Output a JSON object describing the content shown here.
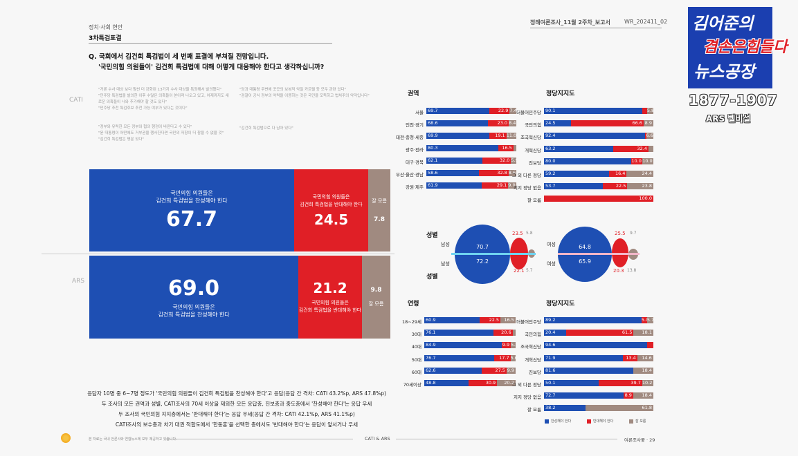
{
  "header": {
    "section": "정치·사회 현안",
    "subsection": "3차특검표결",
    "report_title": "정례여론조사_11월 2주차_보고서",
    "report_code": "WR_202411_02"
  },
  "question": {
    "line1": "Q. 국회에서 김건희 특검법이 세 번째 표결에 부쳐질 전망입니다.",
    "line2": "'국민의힘 의원들이' 김건희 특검법에 대해 어떻게 대응해야 한다고 생각하십니까?"
  },
  "methods": {
    "cati": "CATI",
    "ars": "ARS"
  },
  "quotes": [
    "\"거론 수사 대상 보다 훨씬 더 강화된 13가지 수사 대상을 특정해서 발의했다\"",
    "\"민주당 특검법을 발의한 이후 수많은 의혹들이 쏟아져 나오고 있고, 어제까지도 새로운 의혹들이 나와 추가해야 할 것도 있다\"",
    "\"민주당 추천 특검후보 추천 가능 여부가 있다는 것이다\"",
    "\"정부와 유력한 모든 정부와 협의 행정이 바뀐다고 수 있다\"",
    "\"윤 대통령이 어떤에도 거부권을 행사한다면 국민의 저항이 더 참을 수 없을 것\"",
    "\"김건희 특검법은 명분 있다\"",
    "\"당과 대통령 주변에 곳곳의 보복적 악질 카르텔 등 모두 관련 있다\"",
    "\"검찰이 공식 정부의 악력을 이용하는 것은 국민을 모독하고 법치주의 악덕입니다\"",
    "\"김건희 특검법으로 다 남아 있다\""
  ],
  "main_bars": {
    "cati": {
      "support_label1": "국민의힘 의원들은",
      "support_label2": "김건희 특검법을 찬성해야 한다",
      "support": "67.7",
      "oppose_label1": "국민의힘 의원들은",
      "oppose_label2": "김건희 특검법을 반대해야 한다",
      "oppose": "24.5",
      "dk_label": "잘 모름",
      "dk": "7.8"
    },
    "ars": {
      "support": "69.0",
      "support_label1": "국민의힘 의원들은",
      "support_label2": "김건희 특검법을 찬성해야 한다",
      "oppose": "21.2",
      "oppose_label1": "국민의힘 의원들은",
      "oppose_label2": "김건희 특검법을 반대해야 한다",
      "dk": "9.8",
      "dk_label": "잘 모름"
    }
  },
  "region": {
    "title": "권역",
    "rows": [
      {
        "label": "서울",
        "values": [
          "69.7",
          "22.9",
          "7.4"
        ]
      },
      {
        "label": "인천·경기",
        "values": [
          "68.6",
          "23.0",
          "8.4"
        ]
      },
      {
        "label": "대전·충청·세종",
        "values": [
          "69.9",
          "19.1",
          "11.0"
        ]
      },
      {
        "label": "광주·전라",
        "values": [
          "80.3",
          "16.5",
          ""
        ]
      },
      {
        "label": "대구·경북",
        "values": [
          "62.1",
          "32.0",
          "5.9"
        ]
      },
      {
        "label": "부산·울산·경남",
        "values": [
          "58.6",
          "32.8",
          "8.6"
        ]
      },
      {
        "label": "강원·제주",
        "values": [
          "61.9",
          "29.1",
          "9.0"
        ]
      }
    ]
  },
  "party1": {
    "title": "정당지지도",
    "rows": [
      {
        "label": "더불어민주당",
        "values": [
          "90.1",
          "",
          "5.8"
        ]
      },
      {
        "label": "국민의힘",
        "values": [
          "24.5",
          "66.6",
          "8.9"
        ]
      },
      {
        "label": "조국혁신당",
        "values": [
          "92.4",
          "",
          "6.6"
        ]
      },
      {
        "label": "개혁신당",
        "values": [
          "63.2",
          "32.4",
          ""
        ]
      },
      {
        "label": "진보당",
        "values": [
          "80.0",
          "10.0",
          "10.0"
        ]
      },
      {
        "label": "그 외 다른 정당",
        "values": [
          "59.2",
          "16.4",
          "24.4"
        ]
      },
      {
        "label": "지지 정당 없음",
        "values": [
          "53.7",
          "22.5",
          "23.8"
        ]
      },
      {
        "label": "잘 모름",
        "values": [
          "",
          "100.0",
          ""
        ]
      }
    ]
  },
  "gender": {
    "title_top": "성별",
    "title_bottom": "성별",
    "male": "남성",
    "female": "여성",
    "cati_male": [
      "70.7",
      "23.5",
      "5.8"
    ],
    "ars_male": [
      "72.2",
      "22.1",
      "5.7"
    ],
    "cati_female": [
      "64.8",
      "25.5",
      "9.7"
    ],
    "ars_female": [
      "65.9",
      "20.3",
      "13.8"
    ]
  },
  "age": {
    "title": "연령",
    "rows": [
      {
        "label": "18~29세",
        "values": [
          "60.9",
          "22.5",
          "16.5"
        ]
      },
      {
        "label": "30대",
        "values": [
          "76.1",
          "20.6",
          ""
        ]
      },
      {
        "label": "40대",
        "values": [
          "84.9",
          "9.9",
          "5.2"
        ]
      },
      {
        "label": "50대",
        "values": [
          "76.7",
          "17.7",
          "5.6"
        ]
      },
      {
        "label": "60대",
        "values": [
          "62.6",
          "27.5",
          "9.9"
        ]
      },
      {
        "label": "70세이상",
        "values": [
          "48.8",
          "30.9",
          "20.2"
        ]
      }
    ]
  },
  "party2": {
    "title": "정당지지도",
    "rows": [
      {
        "label": "더불어민주당",
        "values": [
          "89.2",
          "5.0",
          "5.7"
        ]
      },
      {
        "label": "국민의힘",
        "values": [
          "20.4",
          "61.5",
          "18.1"
        ]
      },
      {
        "label": "조국혁신당",
        "values": [
          "94.6",
          "",
          ""
        ]
      },
      {
        "label": "개혁신당",
        "values": [
          "71.9",
          "13.4",
          "14.6"
        ]
      },
      {
        "label": "진보당",
        "values": [
          "81.6",
          "",
          "18.4"
        ]
      },
      {
        "label": "그 외 다른 정당",
        "values": [
          "50.1",
          "39.7",
          "10.2"
        ]
      },
      {
        "label": "지지 정당 없음",
        "values": [
          "72.7",
          "8.9",
          "18.4"
        ]
      },
      {
        "label": "잘 모름",
        "values": [
          "38.2",
          "",
          "61.8"
        ]
      }
    ]
  },
  "legend": {
    "support": "찬성해야 한다",
    "oppose": "반대해야 한다",
    "dk": "잘 모름"
  },
  "footer_notes": [
    "응답자 10명 중 6~7명 정도가 '국민의힘 의원들이 김건희 특검법을 찬성해야 한다'고 응답(응답 간 격차: CATI 43.2%p, ARS 47.8%p)",
    "두 조사의 모든 권역과 성별, CATI조사의 70세 이상을 제외한 모든 응답층, 진보층과 중도층에서 '찬성해야 한다'는 응답 우세",
    "두 조사의 국민의힘 지지층에서는 '반대해야 한다'는 응답 우세(응답 간 격차: CATI 42.1%p, ARS 41.1%p)",
    "CATI조사의 보수층과 차기 대권 적합도에서 '한동훈'을 선택한 층에서도 '반대해야 한다'는 응답이 앞서거나 우세"
  ],
  "page_footer": {
    "left": "본 자료는 국내 언론사와 연합뉴스에 모두 제공하고 있습니다.",
    "center": "CATI & ARS",
    "right": "여론조사꽃 · 29"
  },
  "overlay": {
    "logo_line1": "김어준의",
    "logo_line2": "겸손은힘들다",
    "logo_line3": "뉴스공장",
    "phone": "1877-1907",
    "ars_label": "ARS 벨비설"
  },
  "colors": {
    "blue": "#1e4fb3",
    "red": "#e01f26",
    "gray": "#a08a80"
  }
}
